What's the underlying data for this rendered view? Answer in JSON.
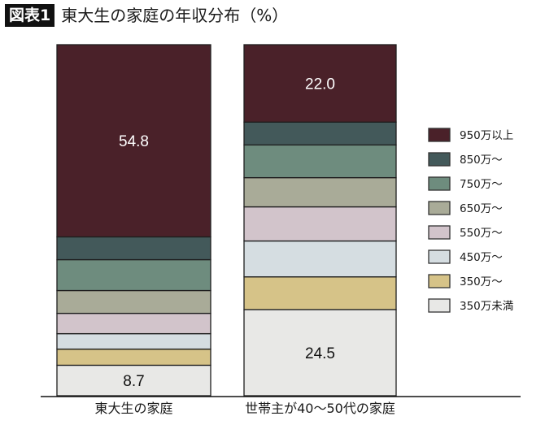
{
  "header": {
    "figure_label": "図表1",
    "title": "東大生の家庭の年収分布（%）"
  },
  "chart_data": {
    "type": "bar",
    "stacked": true,
    "title": "東大生の家庭の年収分布（%）",
    "categories": [
      "東大生の家庭",
      "世帯主が40〜50代の家庭"
    ],
    "series": [
      {
        "name": "350万未満",
        "color": "#e8e8e6",
        "values": [
          8.7,
          24.5
        ],
        "labeled": true,
        "label_color": "#111111"
      },
      {
        "name": "350万〜",
        "color": "#d6c388",
        "values": [
          4.6,
          9.3
        ]
      },
      {
        "name": "450万〜",
        "color": "#d5dde1",
        "values": [
          4.4,
          10.2
        ]
      },
      {
        "name": "550万〜",
        "color": "#d2c4cb",
        "values": [
          5.8,
          9.7
        ]
      },
      {
        "name": "650万〜",
        "color": "#a9ab98",
        "values": [
          6.5,
          8.3
        ]
      },
      {
        "name": "750万〜",
        "color": "#6e8c7e",
        "values": [
          8.8,
          9.3
        ]
      },
      {
        "name": "850万〜",
        "color": "#43595a",
        "values": [
          6.5,
          6.5
        ]
      },
      {
        "name": "950万以上",
        "color": "#4a2129",
        "values": [
          54.8,
          22.0
        ],
        "labeled": true,
        "label_color": "#ffffff"
      }
    ],
    "ylim": [
      0,
      100
    ],
    "legend_placement": "right",
    "grid": false
  }
}
